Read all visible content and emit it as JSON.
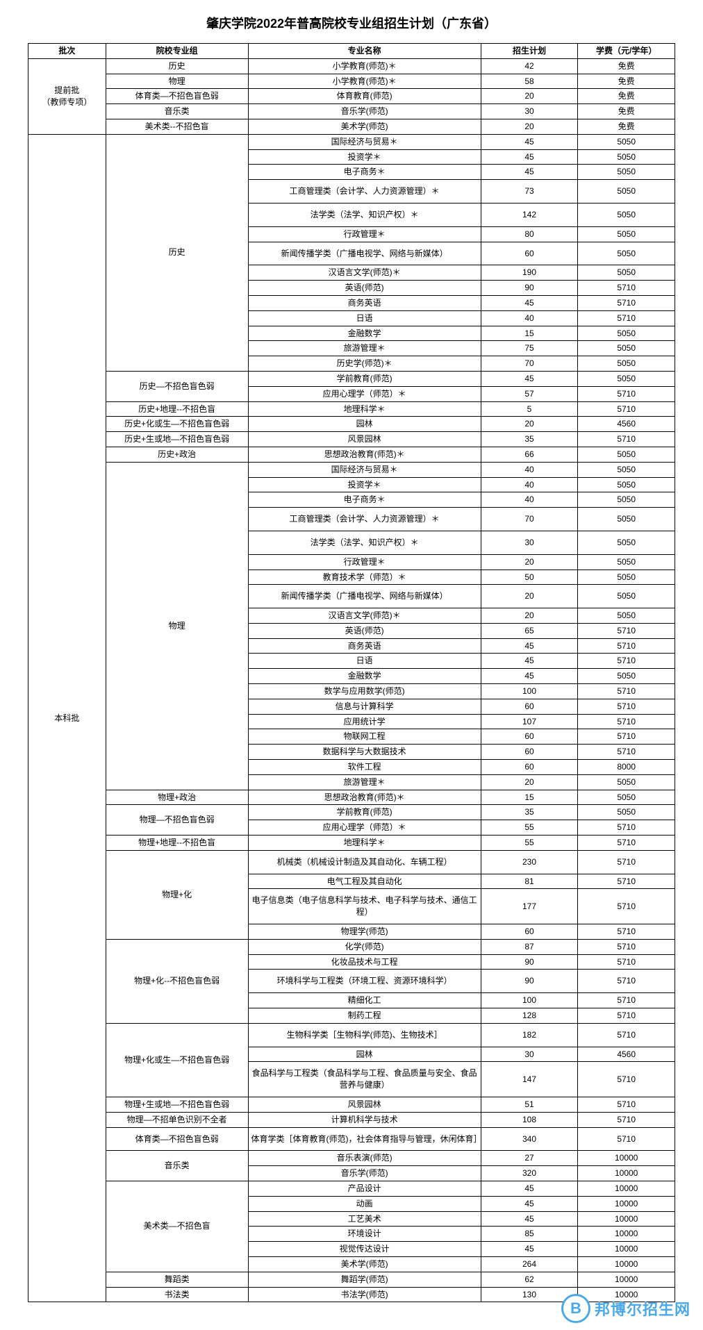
{
  "title": "肇庆学院2022年普高院校专业组招生计划（广东省）",
  "columns": {
    "batch": "批次",
    "group": "院校专业组",
    "major": "专业名称",
    "plan": "招生计划",
    "fee": "学费（元/学年）"
  },
  "watermark": {
    "logo": "B",
    "text": "邦博尔招生网"
  },
  "table_style": {
    "border_color": "#000000",
    "background_color": "#ffffff",
    "font_size": 12,
    "title_font_size": 18,
    "col_widths_pct": [
      12,
      22,
      36,
      15,
      15
    ],
    "text_align": "center"
  },
  "batches": [
    {
      "name": "提前批\n（教师专项）",
      "groups": [
        {
          "name": "历史",
          "rows": [
            {
              "major": "小学教育(师范)＊",
              "plan": 42,
              "fee": "免费"
            }
          ]
        },
        {
          "name": "物理",
          "rows": [
            {
              "major": "小学教育(师范)＊",
              "plan": 58,
              "fee": "免费"
            }
          ]
        },
        {
          "name": "体育类—不招色盲色弱",
          "rows": [
            {
              "major": "体育教育(师范)",
              "plan": 20,
              "fee": "免费"
            }
          ]
        },
        {
          "name": "音乐类",
          "rows": [
            {
              "major": "音乐学(师范)",
              "plan": 30,
              "fee": "免费"
            }
          ]
        },
        {
          "name": "美术类--不招色盲",
          "rows": [
            {
              "major": "美术学(师范)",
              "plan": 20,
              "fee": "免费"
            }
          ]
        }
      ]
    },
    {
      "name": "本科批",
      "groups": [
        {
          "name": "历史",
          "rows": [
            {
              "major": "国际经济与贸易＊",
              "plan": 45,
              "fee": "5050"
            },
            {
              "major": "投资学＊",
              "plan": 45,
              "fee": "5050"
            },
            {
              "major": "电子商务＊",
              "plan": 45,
              "fee": "5050"
            },
            {
              "major": "工商管理类（会计学、人力资源管理）＊",
              "plan": 73,
              "fee": "5050",
              "tall": true
            },
            {
              "major": "法学类（法学、知识产权）＊",
              "plan": 142,
              "fee": "5050",
              "tall": true
            },
            {
              "major": "行政管理＊",
              "plan": 80,
              "fee": "5050"
            },
            {
              "major": "新闻传播学类（广播电视学、网络与新媒体）",
              "plan": 60,
              "fee": "5050",
              "tall": true
            },
            {
              "major": "汉语言文学(师范)＊",
              "plan": 190,
              "fee": "5050"
            },
            {
              "major": "英语(师范)",
              "plan": 90,
              "fee": "5710"
            },
            {
              "major": "商务英语",
              "plan": 45,
              "fee": "5710"
            },
            {
              "major": "日语",
              "plan": 40,
              "fee": "5710"
            },
            {
              "major": "金融数学",
              "plan": 15,
              "fee": "5050"
            },
            {
              "major": "旅游管理＊",
              "plan": 75,
              "fee": "5050"
            },
            {
              "major": "历史学(师范)＊",
              "plan": 70,
              "fee": "5050"
            }
          ]
        },
        {
          "name": "历史—不招色盲色弱",
          "rows": [
            {
              "major": "学前教育(师范)",
              "plan": 45,
              "fee": "5050"
            },
            {
              "major": "应用心理学（师范）＊",
              "plan": 57,
              "fee": "5710"
            }
          ]
        },
        {
          "name": "历史+地理--不招色盲",
          "rows": [
            {
              "major": "地理科学＊",
              "plan": 5,
              "fee": "5710"
            }
          ]
        },
        {
          "name": "历史+化或生—不招色盲色弱",
          "rows": [
            {
              "major": "园林",
              "plan": 20,
              "fee": "4560"
            }
          ]
        },
        {
          "name": "历史+生或地—不招色盲色弱",
          "rows": [
            {
              "major": "风景园林",
              "plan": 35,
              "fee": "5710"
            }
          ]
        },
        {
          "name": "历史+政治",
          "rows": [
            {
              "major": "思想政治教育(师范)＊",
              "plan": 66,
              "fee": "5050"
            }
          ]
        },
        {
          "name": "物理",
          "rows": [
            {
              "major": "国际经济与贸易＊",
              "plan": 40,
              "fee": "5050"
            },
            {
              "major": "投资学＊",
              "plan": 40,
              "fee": "5050"
            },
            {
              "major": "电子商务＊",
              "plan": 40,
              "fee": "5050"
            },
            {
              "major": "工商管理类（会计学、人力资源管理）＊",
              "plan": 70,
              "fee": "5050",
              "tall": true
            },
            {
              "major": "法学类（法学、知识产权）＊",
              "plan": 30,
              "fee": "5050",
              "tall": true
            },
            {
              "major": "行政管理＊",
              "plan": 20,
              "fee": "5050"
            },
            {
              "major": "教育技术学（师范）＊",
              "plan": 50,
              "fee": "5050"
            },
            {
              "major": "新闻传播学类（广播电视学、网络与新媒体）",
              "plan": 20,
              "fee": "5050",
              "tall": true
            },
            {
              "major": "汉语言文学(师范)＊",
              "plan": 20,
              "fee": "5050"
            },
            {
              "major": "英语(师范)",
              "plan": 65,
              "fee": "5710"
            },
            {
              "major": "商务英语",
              "plan": 45,
              "fee": "5710"
            },
            {
              "major": "日语",
              "plan": 45,
              "fee": "5710"
            },
            {
              "major": "金融数学",
              "plan": 45,
              "fee": "5050"
            },
            {
              "major": "数学与应用数学(师范)",
              "plan": 100,
              "fee": "5710"
            },
            {
              "major": "信息与计算科学",
              "plan": 60,
              "fee": "5710"
            },
            {
              "major": "应用统计学",
              "plan": 107,
              "fee": "5710"
            },
            {
              "major": "物联网工程",
              "plan": 60,
              "fee": "5710"
            },
            {
              "major": "数据科学与大数据技术",
              "plan": 60,
              "fee": "5710"
            },
            {
              "major": "软件工程",
              "plan": 60,
              "fee": "8000"
            },
            {
              "major": "旅游管理＊",
              "plan": 20,
              "fee": "5050"
            }
          ]
        },
        {
          "name": "物理+政治",
          "rows": [
            {
              "major": "思想政治教育(师范)＊",
              "plan": 15,
              "fee": "5050"
            }
          ]
        },
        {
          "name": "物理—不招色盲色弱",
          "rows": [
            {
              "major": "学前教育(师范)",
              "plan": 35,
              "fee": "5050"
            },
            {
              "major": "应用心理学（师范）＊",
              "plan": 55,
              "fee": "5710"
            }
          ]
        },
        {
          "name": "物理+地理--不招色盲",
          "rows": [
            {
              "major": "地理科学＊",
              "plan": 55,
              "fee": "5710"
            }
          ]
        },
        {
          "name": "物理+化",
          "rows": [
            {
              "major": "机械类（机械设计制造及其自动化、车辆工程）",
              "plan": 230,
              "fee": "5710",
              "tall": true
            },
            {
              "major": "电气工程及其自动化",
              "plan": 81,
              "fee": "5710"
            },
            {
              "major": "电子信息类（电子信息科学与技术、电子科学与技术、通信工程）",
              "plan": 177,
              "fee": "5710",
              "tall": true
            },
            {
              "major": "物理学(师范)",
              "plan": 60,
              "fee": "5710"
            }
          ]
        },
        {
          "name": "物理+化--不招色盲色弱",
          "rows": [
            {
              "major": "化学(师范)",
              "plan": 87,
              "fee": "5710"
            },
            {
              "major": "化妆品技术与工程",
              "plan": 90,
              "fee": "5710"
            },
            {
              "major": "环境科学与工程类（环境工程、资源环境科学）",
              "plan": 90,
              "fee": "5710",
              "tall": true
            },
            {
              "major": "精细化工",
              "plan": 100,
              "fee": "5710"
            },
            {
              "major": "制药工程",
              "plan": 128,
              "fee": "5710"
            }
          ]
        },
        {
          "name": "物理+化或生—不招色盲色弱",
          "rows": [
            {
              "major": "生物科学类［生物科学(师范)、生物技术］",
              "plan": 182,
              "fee": "5710",
              "tall": true
            },
            {
              "major": "园林",
              "plan": 30,
              "fee": "4560"
            },
            {
              "major": "食品科学与工程类（食品科学与工程、食品质量与安全、食品营养与健康）",
              "plan": 147,
              "fee": "5710",
              "tall": true
            }
          ]
        },
        {
          "name": "物理+生或地—不招色盲色弱",
          "rows": [
            {
              "major": "风景园林",
              "plan": 51,
              "fee": "5710"
            }
          ]
        },
        {
          "name": "物理—不招单色识别不全者",
          "rows": [
            {
              "major": "计算机科学与技术",
              "plan": 108,
              "fee": "5710"
            }
          ]
        },
        {
          "name": "体育类—不招色盲色弱",
          "rows": [
            {
              "major": "体育学类［体育教育(师范)，社会体育指导与管理，休闲体育］",
              "plan": 340,
              "fee": "5710",
              "tall": true
            }
          ]
        },
        {
          "name": "音乐类",
          "rows": [
            {
              "major": "音乐表演(师范)",
              "plan": 27,
              "fee": "10000"
            },
            {
              "major": "音乐学(师范)",
              "plan": 320,
              "fee": "10000"
            }
          ]
        },
        {
          "name": "美术类—不招色盲",
          "rows": [
            {
              "major": "产品设计",
              "plan": 45,
              "fee": "10000"
            },
            {
              "major": "动画",
              "plan": 45,
              "fee": "10000"
            },
            {
              "major": "工艺美术",
              "plan": 45,
              "fee": "10000"
            },
            {
              "major": "环境设计",
              "plan": 85,
              "fee": "10000"
            },
            {
              "major": "视觉传达设计",
              "plan": 45,
              "fee": "10000"
            },
            {
              "major": "美术学(师范)",
              "plan": 264,
              "fee": "10000"
            }
          ]
        },
        {
          "name": "舞蹈类",
          "rows": [
            {
              "major": "舞蹈学(师范)",
              "plan": 62,
              "fee": "10000"
            }
          ]
        },
        {
          "name": "书法类",
          "rows": [
            {
              "major": "书法学(师范)",
              "plan": 130,
              "fee": "10000"
            }
          ]
        }
      ]
    }
  ]
}
